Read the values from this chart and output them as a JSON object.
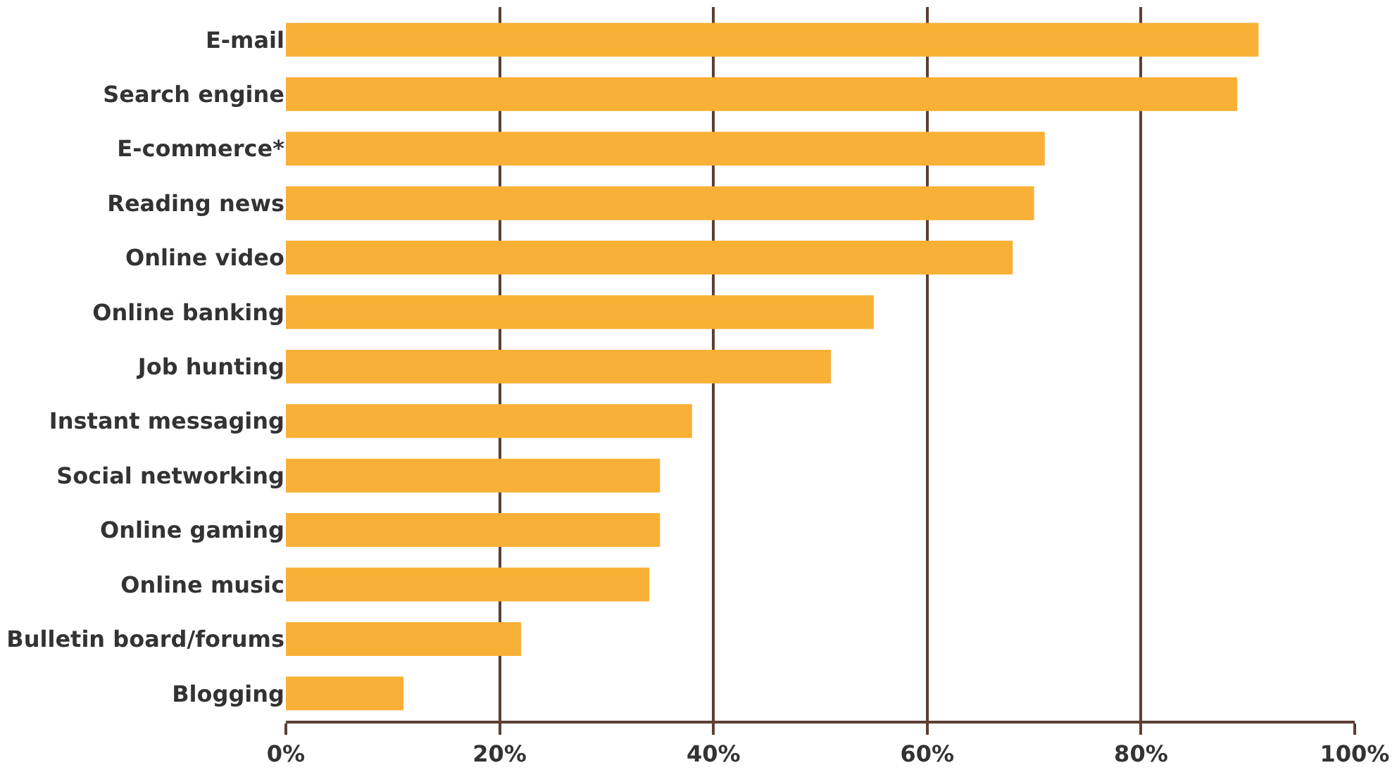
{
  "chart_data": {
    "type": "bar",
    "orientation": "horizontal",
    "categories": [
      "E-mail",
      "Search engine",
      "E-commerce*",
      "Reading news",
      "Online video",
      "Online banking",
      "Job hunting",
      "Instant messaging",
      "Social networking",
      "Online gaming",
      "Online music",
      "Bulletin board/forums",
      "Blogging"
    ],
    "values": [
      91,
      89,
      71,
      70,
      68,
      55,
      51,
      38,
      35,
      35,
      34,
      22,
      11
    ],
    "color": "#f9b036",
    "xlim": [
      0,
      100
    ],
    "xticks": [
      {
        "value": 0,
        "label": "0%"
      },
      {
        "value": 20,
        "label": "20%"
      },
      {
        "value": 40,
        "label": "40%"
      },
      {
        "value": 60,
        "label": "60%"
      },
      {
        "value": 80,
        "label": "80%"
      },
      {
        "value": 100,
        "label": "100%"
      }
    ],
    "grid": "x"
  }
}
